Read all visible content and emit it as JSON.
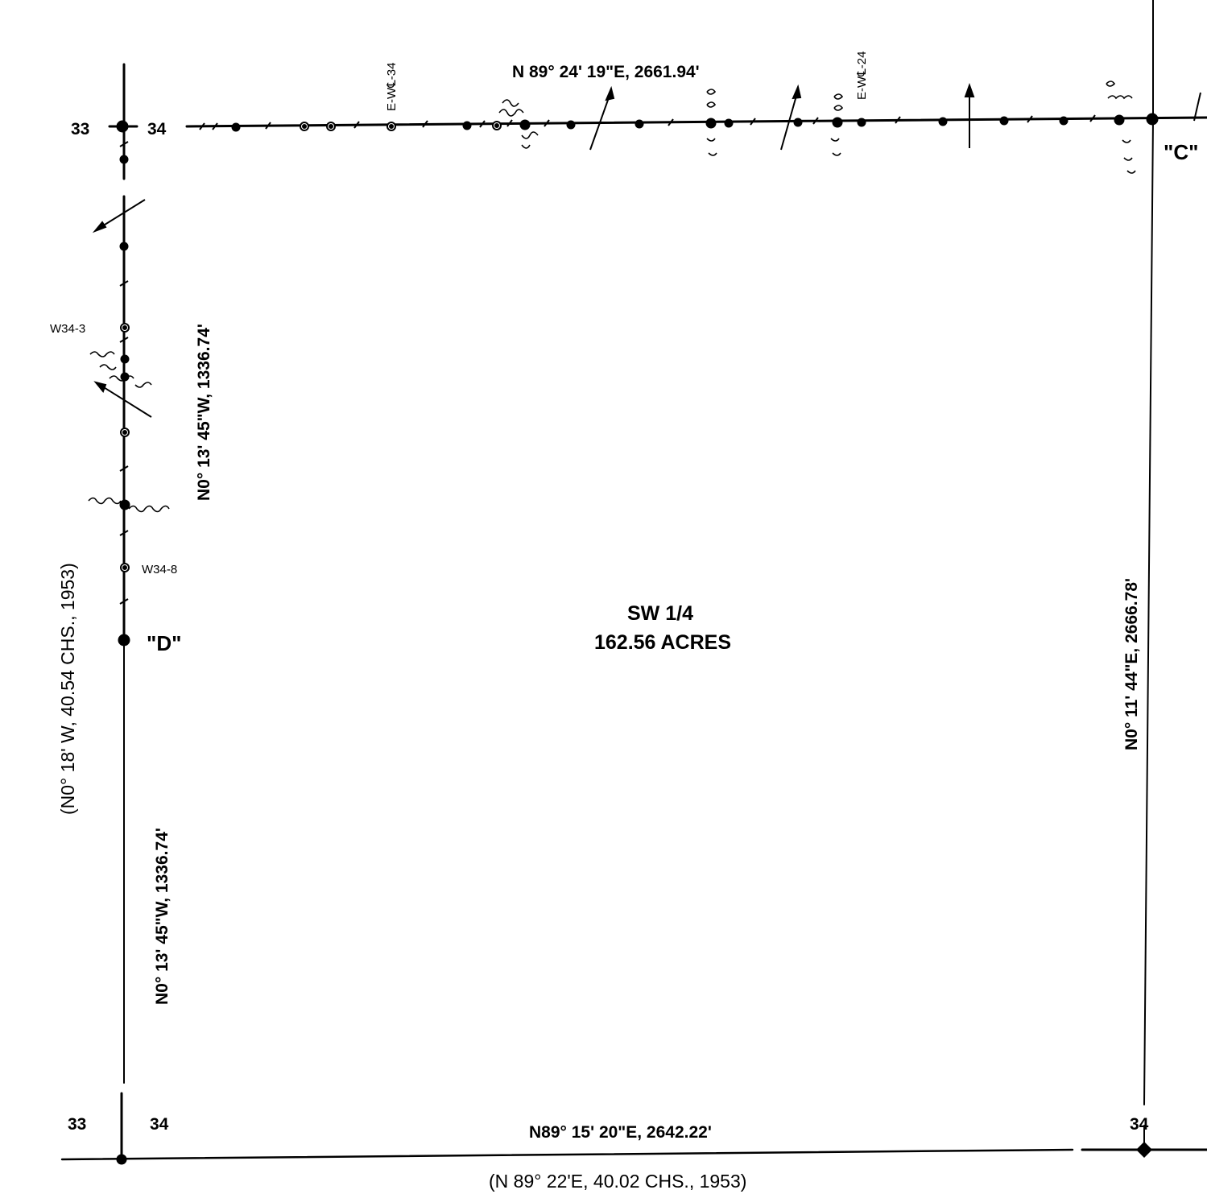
{
  "quarter": {
    "name": "SW 1/4",
    "area": "162.56  ACRES"
  },
  "points": {
    "c": "\"C\"",
    "d": "\"D\""
  },
  "bearings": {
    "north": "N 89° 24' 19\"E,  2661.94'",
    "south": "N89° 15' 20\"E,  2642.22'",
    "south_record": "(N 89° 22'E,  40.02 CHS., 1953)",
    "west_upper": "N0° 13' 45\"W,  1336.74'",
    "west_lower": "N0° 13' 45\"W,  1336.74'",
    "west_record": "(N0° 18' W,  40.54 CHS.,  1953)",
    "east": "N0° 11' 44\"E,  2666.78'"
  },
  "sections": {
    "nw_left": "33",
    "nw_right": "34",
    "sw_left": "33",
    "sw_right": "34",
    "se": "34"
  },
  "well_labels": {
    "ew34": "E-W℄-34",
    "ew24": "E-W℄-24",
    "w343": "W34-3",
    "w348": "W34-8"
  }
}
